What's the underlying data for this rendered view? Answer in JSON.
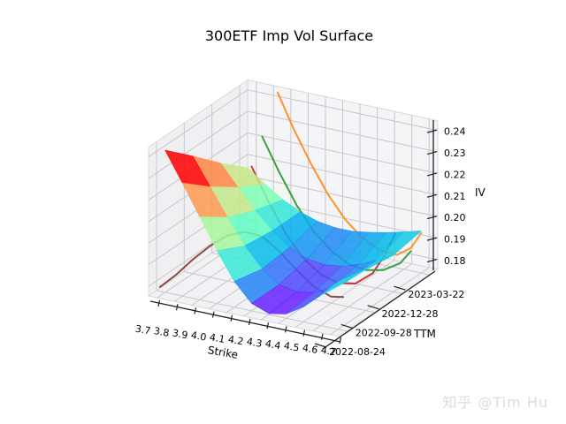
{
  "figure": {
    "title": "300ETF Imp Vol Surface",
    "watermark": "知乎 @Tim Hu"
  },
  "chart_data": {
    "type": "surface",
    "title": "300ETF Imp Vol Surface",
    "xlabel": "Strike",
    "ylabel": "TTM",
    "zlabel": "IV",
    "colormap": "rainbow",
    "x_tick_labels": [
      "3.7",
      "3.8",
      "3.9",
      "4.0",
      "4.1",
      "4.2",
      "4.3",
      "4.4",
      "4.5",
      "4.6",
      "4.7"
    ],
    "y_tick_labels": [
      "2022-08-24",
      "2022-09-28",
      "2022-12-28",
      "2023-03-22"
    ],
    "z_tick_labels": [
      "0.18",
      "0.19",
      "0.20",
      "0.21",
      "0.22",
      "0.23",
      "0.24"
    ],
    "zlim": [
      0.1755,
      0.2445
    ],
    "strikes": [
      3.7,
      3.8,
      3.9,
      4.0,
      4.1,
      4.2,
      4.3,
      4.4,
      4.5,
      4.6,
      4.7
    ],
    "maturities": [
      "2022-08-24",
      "2022-09-28",
      "2022-12-28",
      "2023-03-22"
    ],
    "iv_surface": [
      [
        0.2415,
        0.228,
        0.214,
        0.2,
        0.1875,
        0.179,
        0.176,
        0.1775,
        0.1825,
        0.1895,
        0.1975
      ],
      [
        0.23,
        0.2175,
        0.205,
        0.1935,
        0.1845,
        0.179,
        0.1772,
        0.1788,
        0.1825,
        0.1878,
        0.1945
      ],
      [
        0.218,
        0.2085,
        0.1995,
        0.1918,
        0.1858,
        0.1822,
        0.1812,
        0.1822,
        0.1848,
        0.1882,
        0.1925
      ],
      [
        0.207,
        0.201,
        0.1958,
        0.1918,
        0.1892,
        0.188,
        0.188,
        0.1892,
        0.1908,
        0.1928,
        0.195
      ]
    ],
    "smile_lines": [
      {
        "maturity": "2022-08-24",
        "color": "#8b4038",
        "points": [
          [
            3.67,
            0.1775
          ],
          [
            3.76,
            0.1845
          ],
          [
            3.86,
            0.1935
          ],
          [
            3.96,
            0.2015
          ],
          [
            4.06,
            0.208
          ],
          [
            4.16,
            0.2115
          ],
          [
            4.26,
            0.211
          ],
          [
            4.36,
            0.206
          ],
          [
            4.46,
            0.199
          ],
          [
            4.56,
            0.193
          ],
          [
            4.66,
            0.19
          ],
          [
            4.73,
            0.191
          ]
        ]
      },
      {
        "maturity": "2022-09-28",
        "color": "#c92a35",
        "points": [
          [
            4.04,
            0.231
          ],
          [
            4.14,
            0.216
          ],
          [
            4.24,
            0.203
          ],
          [
            4.34,
            0.1935
          ],
          [
            4.44,
            0.1878
          ],
          [
            4.54,
            0.1855
          ],
          [
            4.64,
            0.187
          ],
          [
            4.74,
            0.1935
          ],
          [
            4.81,
            0.203
          ],
          [
            4.87,
            0.214
          ]
        ]
      },
      {
        "maturity": "2022-12-28",
        "color": "#2e9b33",
        "points": [
          [
            3.94,
            0.2345
          ],
          [
            4.04,
            0.2195
          ],
          [
            4.14,
            0.206
          ],
          [
            4.24,
            0.1955
          ],
          [
            4.34,
            0.1882
          ],
          [
            4.44,
            0.184
          ],
          [
            4.54,
            0.1828
          ],
          [
            4.64,
            0.1845
          ],
          [
            4.74,
            0.1895
          ],
          [
            4.8,
            0.196
          ]
        ]
      },
      {
        "maturity": "2023-03-22",
        "color": "#ff8c1e",
        "points": [
          [
            3.87,
            0.245
          ],
          [
            3.96,
            0.23
          ],
          [
            4.06,
            0.2155
          ],
          [
            4.16,
            0.2028
          ],
          [
            4.26,
            0.1928
          ],
          [
            4.36,
            0.1858
          ],
          [
            4.46,
            0.182
          ],
          [
            4.56,
            0.1815
          ],
          [
            4.64,
            0.186
          ],
          [
            4.7,
            0.194
          ]
        ]
      }
    ]
  },
  "colors": {
    "pane_back": "#f5f5f7",
    "pane_left": "#f0f0f3",
    "pane_bottom": "#f2f2f5",
    "grid": "#c6c6cc",
    "spine": "#222222",
    "watermark": "#dcdcdc"
  }
}
